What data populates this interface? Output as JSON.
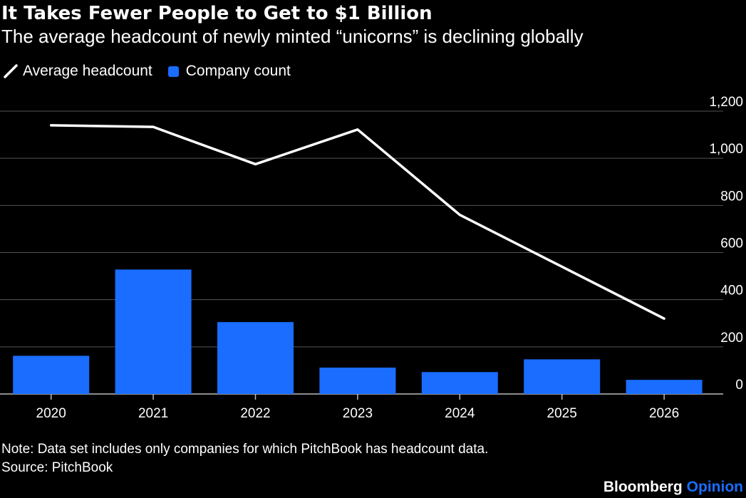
{
  "header": {
    "title": "It Takes Fewer People to Get to $1 Billion",
    "subtitle": "The average headcount of newly minted “unicorns” is declining globally"
  },
  "legend": {
    "line_label": "Average headcount",
    "bar_label": "Company count"
  },
  "footer": {
    "note": "Note: Data set includes only companies for which PitchBook has headcount data.",
    "source": "Source: PitchBook",
    "brand_primary": "Bloomberg",
    "brand_accent": "Opinion"
  },
  "colors": {
    "background": "#000000",
    "bar": "#1a6dff",
    "line": "#ffffff",
    "grid": "#555555",
    "text": "#ffffff",
    "brand_accent": "#1a6dff"
  },
  "chart_data": {
    "type": "bar",
    "categories": [
      "2020",
      "2021",
      "2022",
      "2023",
      "2024",
      "2025",
      "2026"
    ],
    "series": [
      {
        "name": "Company count",
        "type": "bar",
        "values": [
          162,
          528,
          305,
          112,
          93,
          147,
          60
        ]
      },
      {
        "name": "Average headcount",
        "type": "line",
        "values": [
          1140,
          1133,
          975,
          1122,
          760,
          540,
          320
        ]
      }
    ],
    "y_ticks": [
      "0",
      "200",
      "400",
      "600",
      "800",
      "1,000",
      "1,200"
    ],
    "ylim": [
      0,
      1200
    ],
    "grid": true,
    "y_axis_side": "right",
    "legend_placement": "top-left"
  }
}
